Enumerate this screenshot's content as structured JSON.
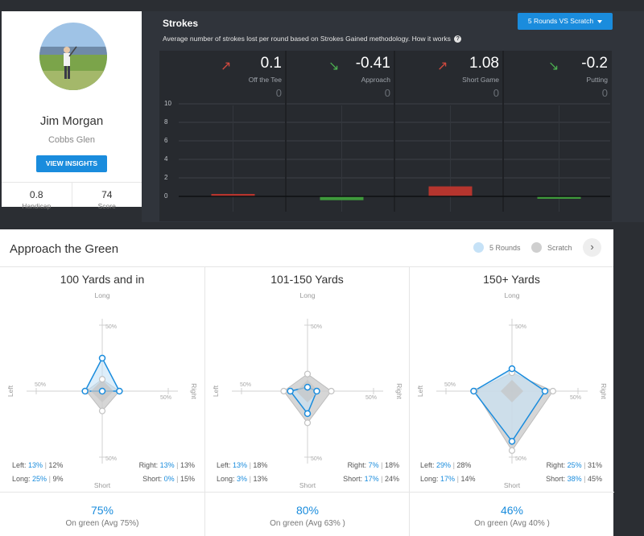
{
  "profile": {
    "name": "Jim Morgan",
    "club": "Cobbs Glen",
    "insights_label": "VIEW INSIGHTS",
    "stats": [
      {
        "value": "0.8",
        "label": "Handicap"
      },
      {
        "value": "74",
        "label": "Score"
      }
    ]
  },
  "strokes": {
    "title": "Strokes",
    "subtitle": "Average number of strokes lost per round based on Strokes Gained methodology. How it works",
    "help_icon": "question-circle-icon",
    "compare_button": "5 Rounds VS Scratch",
    "categories": [
      {
        "label": "Off the Tee",
        "value": "0.1",
        "scratch": "0",
        "trend": "up"
      },
      {
        "label": "Approach",
        "value": "-0.41",
        "scratch": "0",
        "trend": "down"
      },
      {
        "label": "Short Game",
        "value": "1.08",
        "scratch": "0",
        "trend": "up"
      },
      {
        "label": "Putting",
        "value": "-0.2",
        "scratch": "0",
        "trend": "down"
      }
    ],
    "y_ticks": [
      "10",
      "8",
      "6",
      "4",
      "2",
      "0"
    ]
  },
  "chart_data": {
    "type": "bar",
    "categories": [
      "Off the Tee",
      "Approach",
      "Short Game",
      "Putting"
    ],
    "series": [
      {
        "name": "5 Rounds",
        "values": [
          0.1,
          -0.41,
          1.08,
          -0.2
        ]
      },
      {
        "name": "Scratch",
        "values": [
          0,
          0,
          0,
          0
        ]
      }
    ],
    "ylim": [
      0,
      10
    ],
    "y_ticks": [
      0,
      2,
      4,
      6,
      8,
      10
    ],
    "colors": {
      "positive": "#b5352e",
      "negative": "#3f9a3c"
    },
    "title": "Strokes"
  },
  "approach": {
    "title": "Approach the Green",
    "legend": [
      {
        "label": "5 Rounds",
        "color": "#c6e2f7"
      },
      {
        "label": "Scratch",
        "color": "#cfcfcf"
      }
    ],
    "next_icon": "chevron-right-icon",
    "axis_labels": {
      "long": "Long",
      "short": "Short",
      "left": "Left",
      "right": "Right",
      "scale": "50%"
    },
    "colors": {
      "player_line": "#1a8cdd",
      "player_fill": "#c6e2f7",
      "scratch_fill": "#cfcfcf"
    },
    "panels": [
      {
        "title": "100 Yards and in",
        "left": {
          "label": "Left:",
          "player": "13%",
          "scratch": "12%"
        },
        "right": {
          "label": "Right:",
          "player": "13%",
          "scratch": "13%"
        },
        "long": {
          "label": "Long:",
          "player": "25%",
          "scratch": "9%"
        },
        "short": {
          "label": "Short:",
          "player": "0%",
          "scratch": "15%"
        },
        "player_values": {
          "long": 25,
          "right": 13,
          "short": 0,
          "left": 13
        },
        "scratch_values": {
          "long": 9,
          "right": 13,
          "short": 15,
          "left": 12
        },
        "green_pct": "75%",
        "green_label": "On green (Avg 75%)"
      },
      {
        "title": "101-150 Yards",
        "left": {
          "label": "Left:",
          "player": "13%",
          "scratch": "18%"
        },
        "right": {
          "label": "Right:",
          "player": "7%",
          "scratch": "18%"
        },
        "long": {
          "label": "Long:",
          "player": "3%",
          "scratch": "13%"
        },
        "short": {
          "label": "Short:",
          "player": "17%",
          "scratch": "24%"
        },
        "player_values": {
          "long": 3,
          "right": 7,
          "short": 17,
          "left": 13
        },
        "scratch_values": {
          "long": 13,
          "right": 18,
          "short": 24,
          "left": 18
        },
        "green_pct": "80%",
        "green_label": "On green (Avg 63% )"
      },
      {
        "title": "150+ Yards",
        "left": {
          "label": "Left:",
          "player": "29%",
          "scratch": "28%"
        },
        "right": {
          "label": "Right:",
          "player": "25%",
          "scratch": "31%"
        },
        "long": {
          "label": "Long:",
          "player": "17%",
          "scratch": "14%"
        },
        "short": {
          "label": "Short:",
          "player": "38%",
          "scratch": "45%"
        },
        "player_values": {
          "long": 17,
          "right": 25,
          "short": 38,
          "left": 29
        },
        "scratch_values": {
          "long": 14,
          "right": 31,
          "short": 45,
          "left": 28
        },
        "green_pct": "46%",
        "green_label": "On green (Avg 40% )"
      }
    ]
  }
}
